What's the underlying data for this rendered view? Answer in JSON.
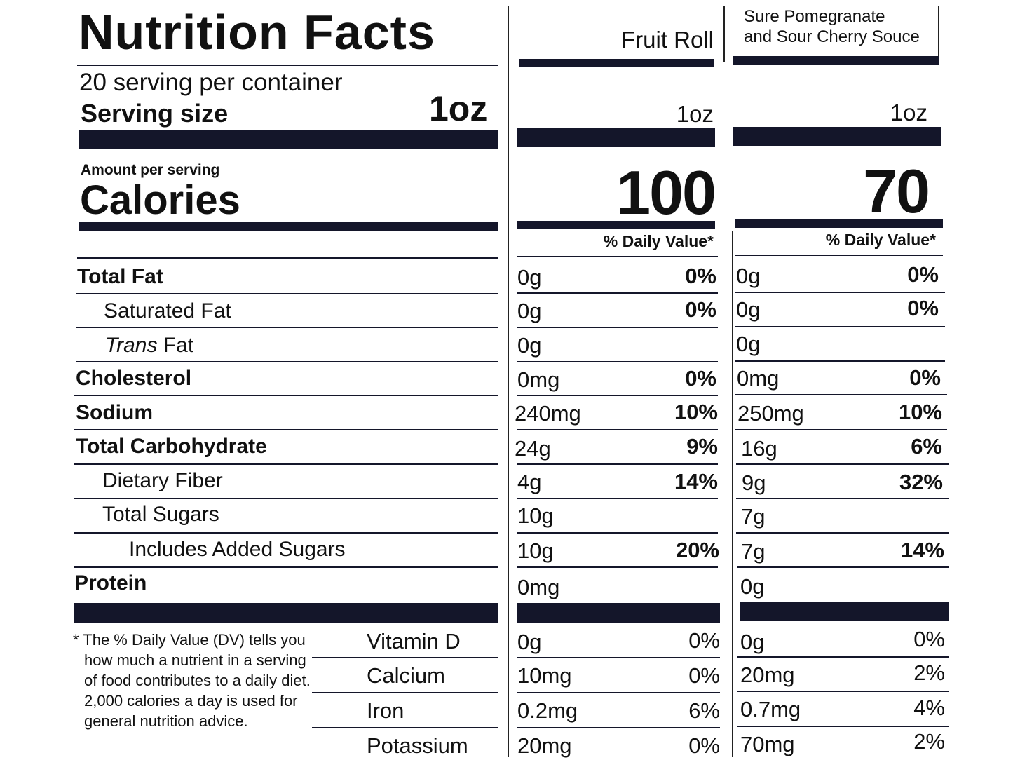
{
  "label": {
    "title": "Nutrition Facts",
    "servings": "20 serving per container",
    "serving_size_label": "Serving size",
    "serving_size": "1oz",
    "amount_per_serving": "Amount per serving",
    "calories_label": "Calories",
    "daily_value_header": "% Daily Value*",
    "nutrients": [
      "Total Fat",
      "Saturated Fat",
      "Trans",
      "Fat",
      "Cholesterol",
      "Sodium",
      "Total Carbohydrate",
      "Dietary Fiber",
      "Total Sugars",
      "Includes Added Sugars",
      "Protein"
    ],
    "minerals": [
      "Vitamin D",
      "Calcium",
      "Iron",
      "Potassium"
    ],
    "footnote": [
      "* The % Daily Value (DV) tells you",
      "how much a nutrient in a serving",
      "of food contributes to a daily diet.",
      "2,000 calories a day is used for",
      "general nutrition advice."
    ]
  },
  "products": [
    {
      "name": "Fruit Roll",
      "serving": "1oz",
      "calories": "100",
      "daily_value_header": "% Daily Value*",
      "amounts": [
        "0g",
        "0g",
        "0g",
        "0mg",
        "240mg",
        "24g",
        "4g",
        "10g",
        "10g",
        "0mg"
      ],
      "percents": [
        "0%",
        "0%",
        "",
        "0%",
        "10%",
        "9%",
        "14%",
        "",
        "20%",
        ""
      ],
      "mineral_amounts": [
        "0g",
        "10mg",
        "0.2mg",
        "20mg"
      ],
      "mineral_percents": [
        "0%",
        "0%",
        "6%",
        "0%"
      ]
    },
    {
      "name_line1": "Sure Pomegranate",
      "name_line2": "and Sour Cherry Souce",
      "serving": "1oz",
      "calories": "70",
      "daily_value_header": "% Daily Value*",
      "amounts": [
        "0g",
        "0g",
        "0g",
        "0mg",
        "250mg",
        "16g",
        "9g",
        "7g",
        "7g",
        "0g"
      ],
      "percents": [
        "0%",
        "0%",
        "",
        "0%",
        "10%",
        "6%",
        "32%",
        "",
        "14%",
        ""
      ],
      "mineral_amounts": [
        "0g",
        "20mg",
        "0.7mg",
        "70mg"
      ],
      "mineral_percents": [
        "0%",
        "2%",
        "4%",
        "2%"
      ]
    }
  ]
}
